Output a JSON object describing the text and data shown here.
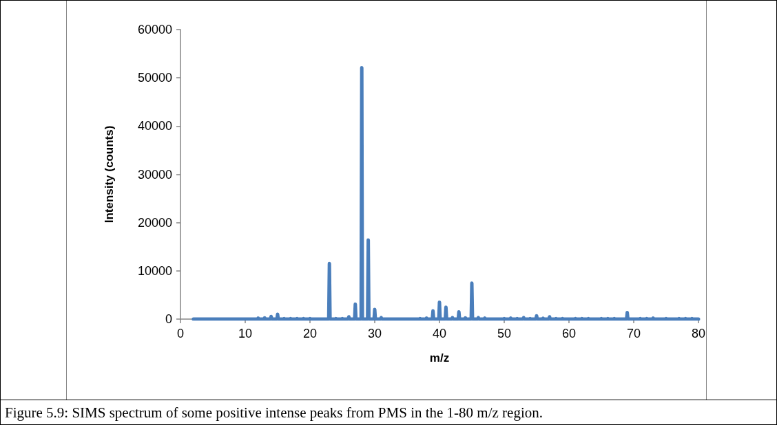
{
  "chart_data": {
    "type": "line",
    "xlabel": "m/z",
    "ylabel": "Intensity (counts)",
    "annotations": [
      "Figure 5.9: SIMS spectrum of some positive intense peaks from PMS in the 1-80 m/z region."
    ],
    "xlim": [
      0,
      80
    ],
    "xticks": [
      0,
      10,
      20,
      30,
      40,
      50,
      60,
      70,
      80
    ],
    "ylim": [
      0,
      60000
    ],
    "yticks": [
      0,
      10000,
      20000,
      30000,
      40000,
      50000,
      60000
    ],
    "grid": false,
    "marker": "none",
    "series": [
      {
        "color": "#4a7ebb",
        "x": [
          2,
          11.9,
          12,
          12.1,
          12.9,
          13,
          13.1,
          13.9,
          14,
          14.1,
          14.9,
          15,
          15.1,
          15.9,
          16,
          16.1,
          16.9,
          17,
          17.1,
          17.9,
          18,
          18.1,
          18.9,
          19,
          19.1,
          19.9,
          20,
          20.1,
          22.9,
          23,
          23.1,
          23.9,
          24,
          24.1,
          24.9,
          25,
          25.1,
          25.9,
          26,
          26.1,
          26.9,
          27,
          27.1,
          27.9,
          28,
          28.1,
          28.9,
          29,
          29.1,
          29.9,
          30,
          30.1,
          30.9,
          31,
          31.1,
          36.9,
          37,
          37.1,
          37.9,
          38,
          38.1,
          38.9,
          39,
          39.1,
          39.9,
          40,
          40.1,
          40.9,
          41,
          41.1,
          41.9,
          42,
          42.1,
          42.9,
          43,
          43.1,
          43.9,
          44,
          44.1,
          44.9,
          45,
          45.1,
          45.9,
          46,
          46.1,
          46.9,
          47,
          47.1,
          49.9,
          50,
          50.1,
          50.9,
          51,
          51.1,
          51.9,
          52,
          52.1,
          52.9,
          53,
          53.1,
          53.9,
          54,
          54.1,
          54.9,
          55,
          55.1,
          55.9,
          56,
          56.1,
          56.9,
          57,
          57.1,
          57.9,
          58,
          58.1,
          58.9,
          59,
          59.1,
          60.9,
          61,
          61.1,
          61.9,
          62,
          62.1,
          62.9,
          63,
          63.1,
          64.9,
          65,
          65.1,
          65.9,
          66,
          66.1,
          66.9,
          67,
          67.1,
          68.9,
          69,
          69.1,
          70.9,
          71,
          71.1,
          71.9,
          72,
          72.1,
          72.9,
          73,
          73.1,
          74.9,
          75,
          75.1,
          76.9,
          77,
          77.1,
          77.9,
          78,
          78.1,
          78.9,
          79,
          79.1,
          80
        ],
        "values": [
          0,
          0,
          200,
          0,
          0,
          250,
          0,
          0,
          540,
          0,
          0,
          1000,
          0,
          0,
          100,
          0,
          0,
          100,
          0,
          0,
          100,
          0,
          0,
          100,
          0,
          0,
          100,
          0,
          0,
          11500,
          0,
          0,
          100,
          0,
          0,
          100,
          0,
          0,
          460,
          0,
          0,
          3100,
          0,
          0,
          52100,
          0,
          0,
          16400,
          0,
          0,
          2000,
          0,
          0,
          300,
          0,
          0,
          100,
          0,
          0,
          200,
          0,
          0,
          1700,
          0,
          0,
          3500,
          0,
          0,
          2450,
          0,
          0,
          300,
          0,
          0,
          1500,
          0,
          0,
          250,
          0,
          0,
          7450,
          0,
          0,
          300,
          0,
          0,
          200,
          0,
          0,
          100,
          0,
          0,
          200,
          0,
          0,
          100,
          0,
          0,
          300,
          0,
          0,
          100,
          0,
          0,
          680,
          0,
          0,
          170,
          0,
          0,
          460,
          0,
          0,
          100,
          0,
          0,
          100,
          0,
          0,
          100,
          0,
          0,
          100,
          0,
          0,
          100,
          0,
          0,
          100,
          0,
          0,
          100,
          0,
          0,
          100,
          0,
          0,
          1350,
          0,
          0,
          100,
          0,
          0,
          100,
          0,
          0,
          200,
          0,
          0,
          100,
          0,
          0,
          100,
          0,
          0,
          100,
          0,
          0,
          100,
          0,
          0
        ]
      }
    ]
  }
}
